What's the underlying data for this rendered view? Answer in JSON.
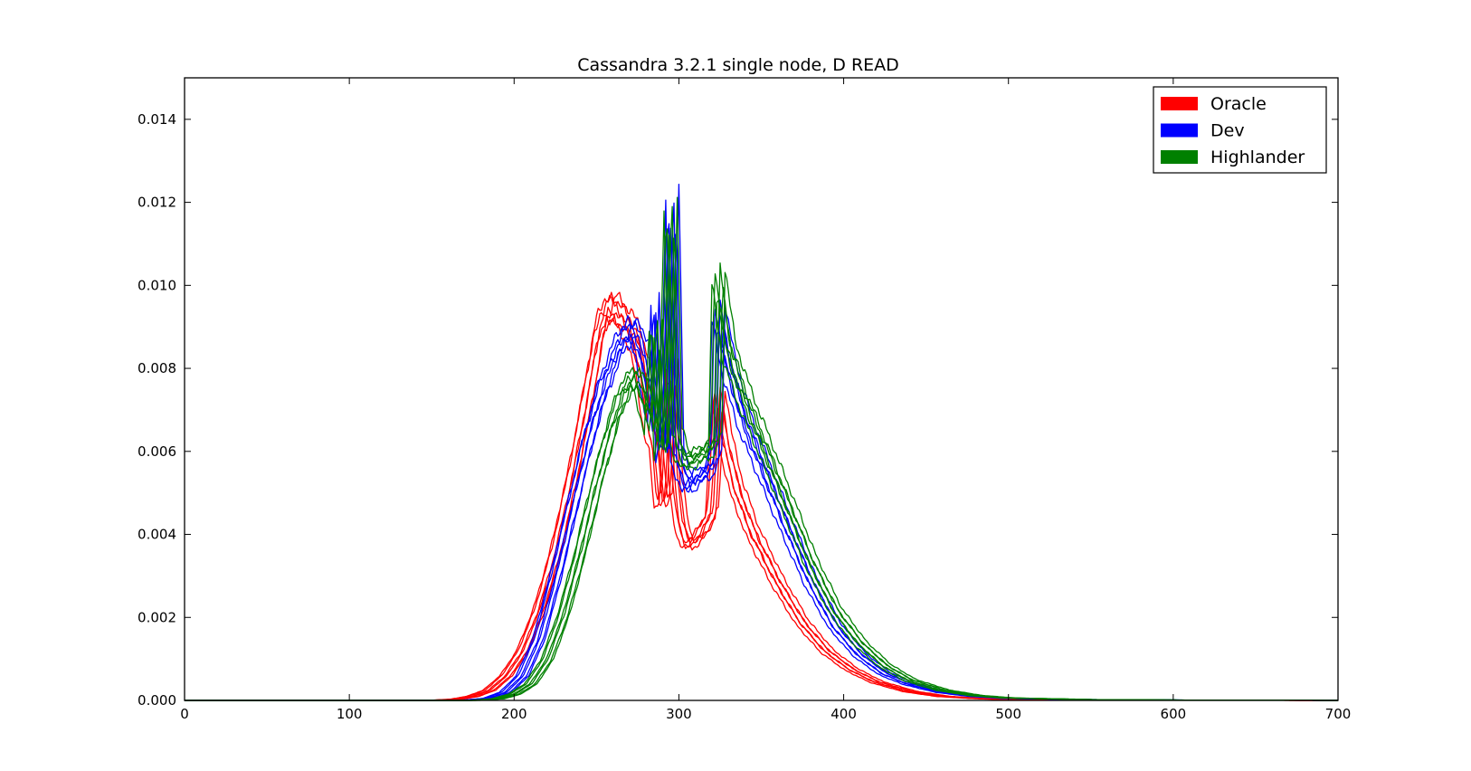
{
  "chart_data": {
    "type": "line",
    "title": "Cassandra 3.2.1 single node, D READ",
    "xlabel": "",
    "ylabel": "",
    "xlim": [
      0,
      700
    ],
    "ylim": [
      0,
      0.015
    ],
    "xticks": [
      0,
      100,
      200,
      300,
      400,
      500,
      600,
      700
    ],
    "xtick_labels": [
      "0",
      "100",
      "200",
      "300",
      "400",
      "500",
      "600",
      "700"
    ],
    "yticks": [
      0,
      0.002,
      0.004,
      0.006,
      0.008,
      0.01,
      0.012,
      0.014
    ],
    "ytick_labels": [
      "0.000",
      "0.002",
      "0.004",
      "0.006",
      "0.008",
      "0.010",
      "0.012",
      "0.014"
    ],
    "grid": false,
    "legend_position": "top-right",
    "legend": [
      {
        "name": "Oracle",
        "color": "#ff0000"
      },
      {
        "name": "Dev",
        "color": "#0000ff"
      },
      {
        "name": "Highlander",
        "color": "#008000"
      }
    ],
    "groups": [
      {
        "name": "Oracle",
        "color": "#ff0000",
        "curves": 6,
        "x_shift_range": [
          -4,
          4
        ],
        "y_scale_range": [
          0.95,
          1.02
        ],
        "points": [
          [
            0,
            0
          ],
          [
            150,
            0
          ],
          [
            165,
            3e-05
          ],
          [
            175,
            0.0001
          ],
          [
            185,
            0.00025
          ],
          [
            195,
            0.0006
          ],
          [
            205,
            0.0012
          ],
          [
            215,
            0.0022
          ],
          [
            225,
            0.0036
          ],
          [
            235,
            0.0054
          ],
          [
            245,
            0.0075
          ],
          [
            252,
            0.0091
          ],
          [
            258,
            0.0097
          ],
          [
            265,
            0.0094
          ],
          [
            272,
            0.009
          ],
          [
            278,
            0.0081
          ],
          [
            283,
            0.0066
          ],
          [
            286,
            0.0062
          ],
          [
            289,
            0.0048
          ],
          [
            292,
            0.005
          ],
          [
            294,
            0.0065
          ],
          [
            296,
            0.0082
          ],
          [
            298,
            0.0055
          ],
          [
            301,
            0.0044
          ],
          [
            305,
            0.0038
          ],
          [
            310,
            0.0039
          ],
          [
            315,
            0.0042
          ],
          [
            320,
            0.0046
          ],
          [
            324,
            0.0075
          ],
          [
            328,
            0.0064
          ],
          [
            335,
            0.0052
          ],
          [
            345,
            0.0041
          ],
          [
            360,
            0.0029
          ],
          [
            375,
            0.0019
          ],
          [
            390,
            0.0012
          ],
          [
            405,
            0.00075
          ],
          [
            420,
            0.00045
          ],
          [
            440,
            0.00022
          ],
          [
            460,
            0.0001
          ],
          [
            480,
            5e-05
          ],
          [
            500,
            2e-05
          ],
          [
            550,
            1e-05
          ],
          [
            600,
            4e-06
          ],
          [
            700,
            0
          ]
        ]
      },
      {
        "name": "Dev",
        "color": "#0000ff",
        "curves": 6,
        "x_shift_range": [
          -4,
          4
        ],
        "y_scale_range": [
          0.95,
          1.02
        ],
        "points": [
          [
            0,
            0
          ],
          [
            170,
            0
          ],
          [
            185,
            5e-05
          ],
          [
            195,
            0.0002
          ],
          [
            205,
            0.0006
          ],
          [
            215,
            0.0015
          ],
          [
            225,
            0.003
          ],
          [
            235,
            0.0047
          ],
          [
            245,
            0.0064
          ],
          [
            255,
            0.0078
          ],
          [
            265,
            0.0088
          ],
          [
            272,
            0.0091
          ],
          [
            278,
            0.0085
          ],
          [
            282,
            0.0075
          ],
          [
            285,
            0.0068
          ],
          [
            287,
            0.0099
          ],
          [
            290,
            0.006
          ],
          [
            293,
            0.007
          ],
          [
            296,
            0.0123
          ],
          [
            299,
            0.006
          ],
          [
            302,
            0.0056
          ],
          [
            306,
            0.0052
          ],
          [
            312,
            0.0055
          ],
          [
            318,
            0.0056
          ],
          [
            322,
            0.006
          ],
          [
            324,
            0.0095
          ],
          [
            330,
            0.0082
          ],
          [
            340,
            0.0068
          ],
          [
            350,
            0.0058
          ],
          [
            365,
            0.0043
          ],
          [
            380,
            0.0029
          ],
          [
            395,
            0.0018
          ],
          [
            410,
            0.0011
          ],
          [
            425,
            0.00065
          ],
          [
            440,
            0.0004
          ],
          [
            460,
            0.0002
          ],
          [
            480,
            0.0001
          ],
          [
            500,
            5e-05
          ],
          [
            550,
            2e-05
          ],
          [
            600,
            1e-05
          ],
          [
            700,
            0
          ]
        ]
      },
      {
        "name": "Highlander",
        "color": "#008000",
        "curves": 6,
        "x_shift_range": [
          -4,
          4
        ],
        "y_scale_range": [
          0.95,
          1.02
        ],
        "points": [
          [
            0,
            0
          ],
          [
            175,
            0
          ],
          [
            190,
            4e-05
          ],
          [
            200,
            0.00015
          ],
          [
            210,
            0.0004
          ],
          [
            220,
            0.001
          ],
          [
            230,
            0.0021
          ],
          [
            240,
            0.0036
          ],
          [
            250,
            0.0053
          ],
          [
            260,
            0.0068
          ],
          [
            268,
            0.0077
          ],
          [
            275,
            0.0079
          ],
          [
            280,
            0.0072
          ],
          [
            283,
            0.0067
          ],
          [
            286,
            0.0092
          ],
          [
            289,
            0.006
          ],
          [
            292,
            0.0073
          ],
          [
            295,
            0.0121
          ],
          [
            298,
            0.0065
          ],
          [
            302,
            0.006
          ],
          [
            306,
            0.0058
          ],
          [
            312,
            0.006
          ],
          [
            318,
            0.0061
          ],
          [
            322,
            0.0064
          ],
          [
            324,
            0.0104
          ],
          [
            330,
            0.0086
          ],
          [
            340,
            0.0074
          ],
          [
            350,
            0.0064
          ],
          [
            365,
            0.0049
          ],
          [
            380,
            0.0034
          ],
          [
            395,
            0.0022
          ],
          [
            410,
            0.0014
          ],
          [
            425,
            0.00085
          ],
          [
            440,
            0.0005
          ],
          [
            460,
            0.00025
          ],
          [
            480,
            0.00012
          ],
          [
            500,
            6e-05
          ],
          [
            550,
            2e-05
          ],
          [
            600,
            1e-05
          ],
          [
            700,
            0
          ]
        ]
      }
    ]
  }
}
